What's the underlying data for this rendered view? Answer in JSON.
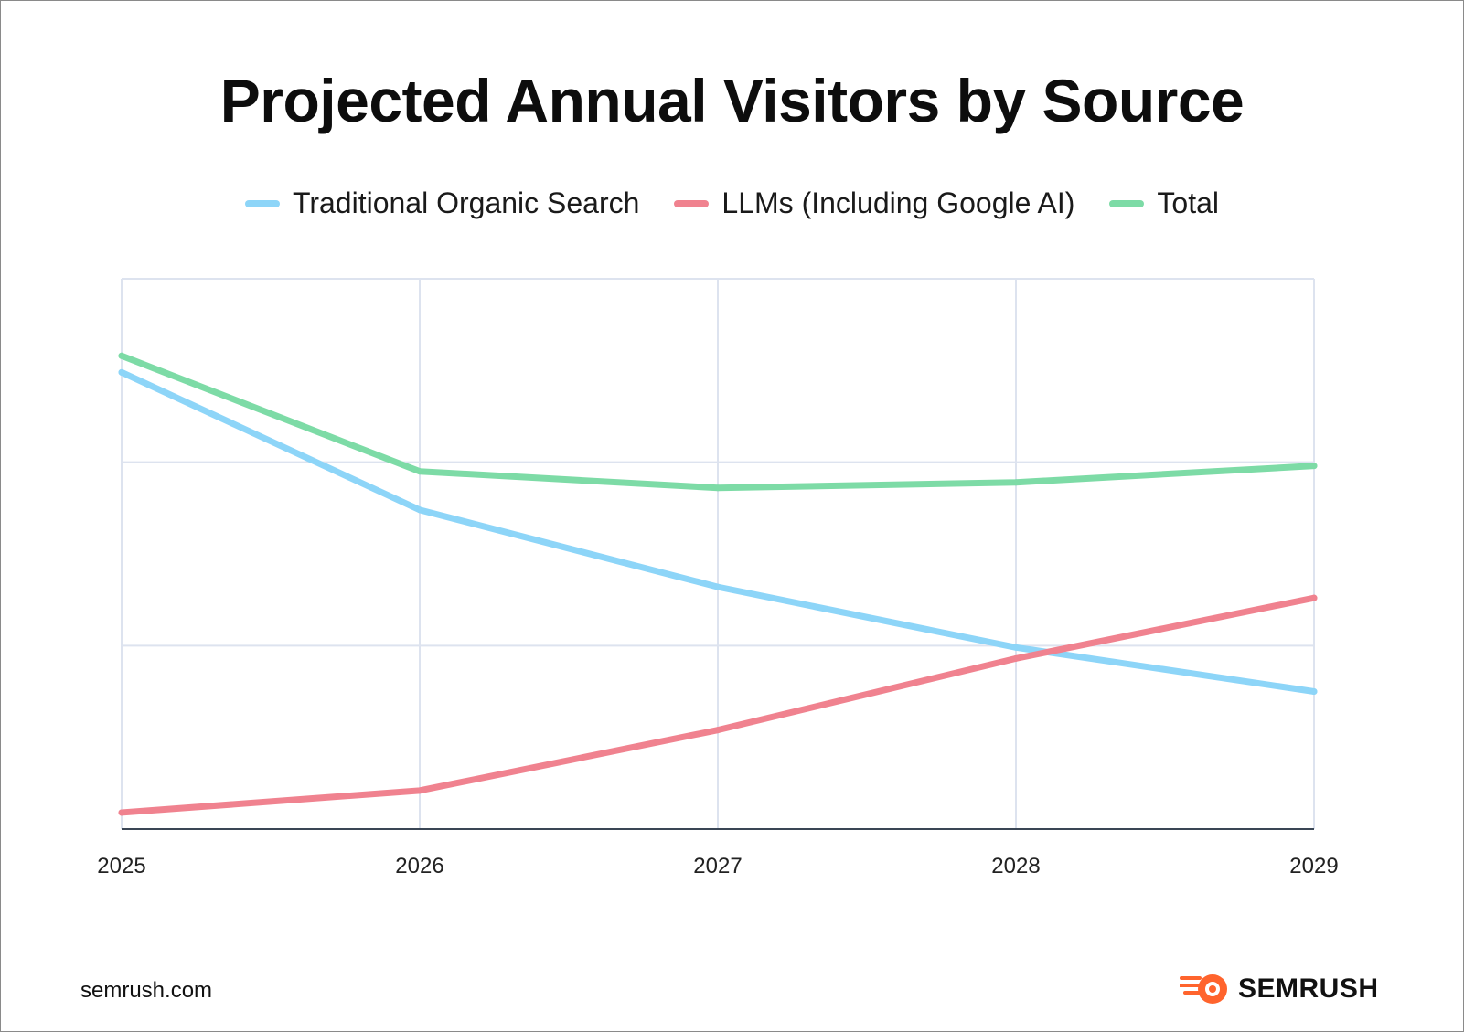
{
  "chart_data": {
    "type": "line",
    "title": "Projected Annual Visitors by Source",
    "xlabel": "",
    "ylabel": "",
    "categories": [
      "2025",
      "2026",
      "2027",
      "2028",
      "2029"
    ],
    "ylim": [
      0,
      100
    ],
    "grid": true,
    "legend_position": "top",
    "series": [
      {
        "name": "Traditional Organic Search",
        "color": "#8dd5f8",
        "values": [
          83,
          58,
          44,
          33,
          25
        ]
      },
      {
        "name": "LLMs (Including Google AI)",
        "color": "#f0828f",
        "values": [
          3,
          7,
          18,
          31,
          42
        ]
      },
      {
        "name": "Total",
        "color": "#7ddba6",
        "values": [
          86,
          65,
          62,
          63,
          66
        ]
      }
    ]
  },
  "footer": {
    "url": "semrush.com",
    "brand": "SEMRUSH",
    "brand_color": "#ff642d",
    "logo_icon": "semrush-logo-icon"
  }
}
